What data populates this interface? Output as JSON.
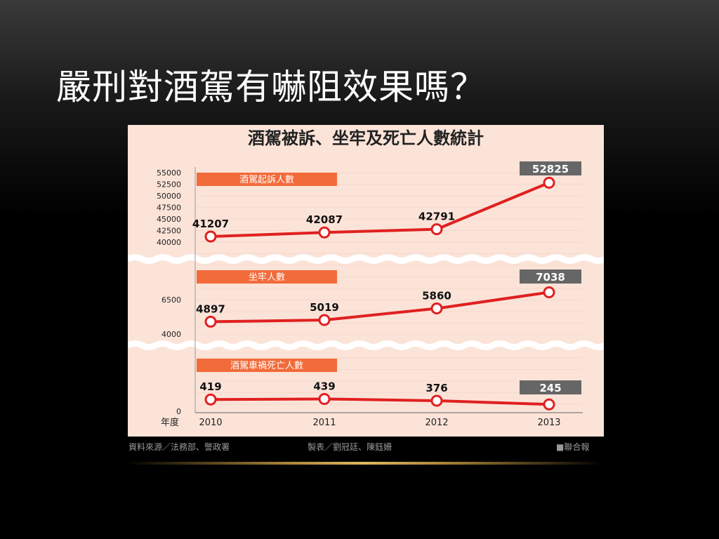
{
  "slide": {
    "title": "嚴刑對酒駕有嚇阻效果嗎？"
  },
  "chart_data": {
    "type": "line",
    "title": "酒駕被訴、坐牢及死亡人數統計",
    "xlabel": "年度",
    "categories": [
      "2010",
      "2011",
      "2012",
      "2013"
    ],
    "series": [
      {
        "name": "酒駕起訴人數",
        "values": [
          41207,
          42087,
          42791,
          52825
        ],
        "yticks": [
          40000,
          42500,
          45000,
          47500,
          50000,
          52500,
          55000
        ],
        "ylim": [
          40000,
          55000
        ]
      },
      {
        "name": "坐牢人數",
        "values": [
          4897,
          5019,
          5860,
          7038
        ],
        "yticks": [
          4000,
          6500
        ],
        "ylim": [
          4000,
          7500
        ]
      },
      {
        "name": "酒駕車禍死亡人數",
        "values": [
          419,
          439,
          376,
          245
        ],
        "yticks": [
          0
        ],
        "ylim": [
          0,
          550
        ]
      }
    ],
    "colors": {
      "line": "#e02020",
      "background": "#fbe3d8",
      "label_bar": "#f26b3a",
      "last_box": "#666666"
    }
  },
  "footer": {
    "source": "資料來源／法務部、警政署",
    "design": "製表／劉冠廷、陳鈺姍",
    "publisher": "■聯合報"
  }
}
